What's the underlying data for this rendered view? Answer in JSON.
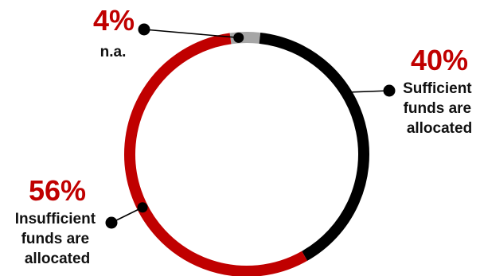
{
  "chart_data": {
    "type": "pie",
    "style": "donut",
    "title": "",
    "slices": [
      {
        "label": "Sufficient funds are allocated",
        "value": 40,
        "display": "40%",
        "color": "#000000",
        "label_lines": [
          "Sufficient",
          "funds are",
          "allocated"
        ]
      },
      {
        "label": "Insufficient funds are allocated",
        "value": 56,
        "display": "56%",
        "color": "#c00000",
        "label_lines": [
          "Insufficient",
          "funds are",
          "allocated"
        ]
      },
      {
        "label": "n.a.",
        "value": 4,
        "display": "4%",
        "color": "#a6a6a6",
        "label_lines": [
          "n.a."
        ]
      }
    ],
    "percent_color": "#c00000",
    "legend": "none"
  }
}
